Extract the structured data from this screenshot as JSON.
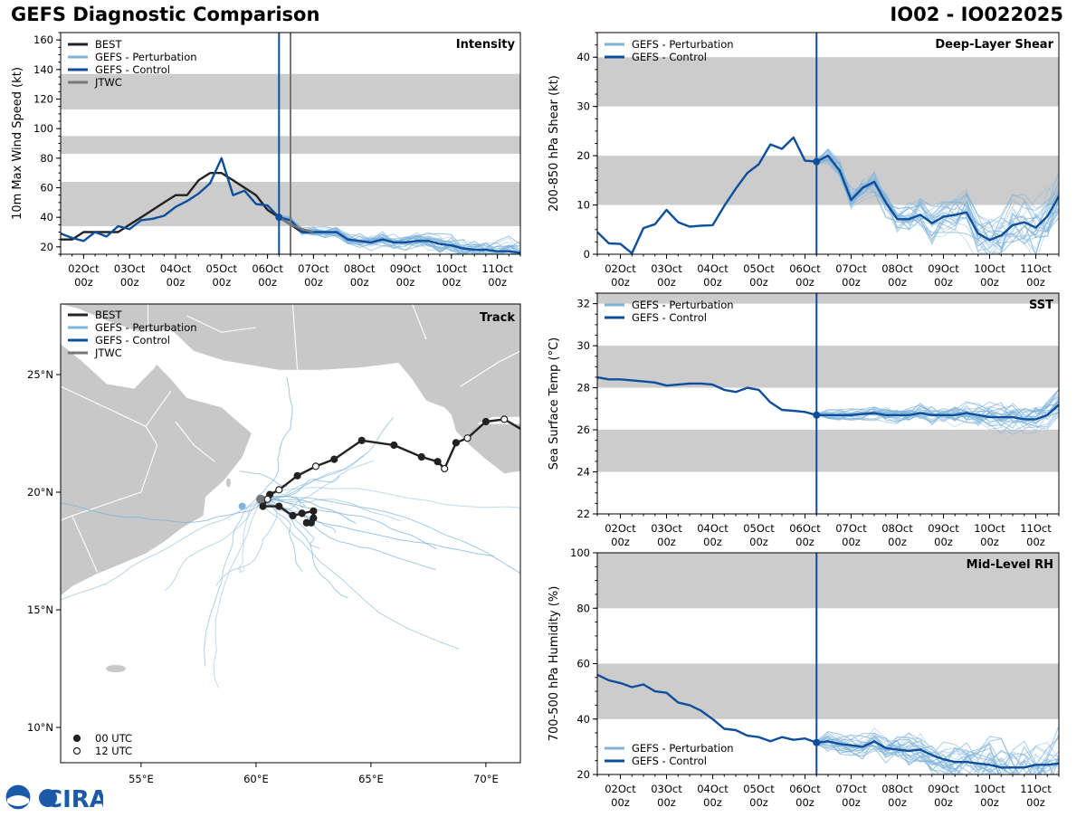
{
  "page": {
    "title": "GEFS Diagnostic Comparison",
    "storm": "IO02 - IO022025"
  },
  "colors": {
    "best": "#222222",
    "pert": "#7fb3d9",
    "ctrl": "#0d4f9c",
    "jtwc": "#777777",
    "band": "#cccccc",
    "land": "#c8c8c8",
    "border": "#ffffff"
  },
  "time_axis": {
    "ticks": [
      2,
      3,
      4,
      5,
      6,
      7,
      8,
      9,
      10,
      11
    ],
    "labels": [
      "02Oct",
      "03Oct",
      "04Oct",
      "05Oct",
      "06Oct",
      "07Oct",
      "08Oct",
      "09Oct",
      "10Oct",
      "11Oct"
    ],
    "sublabel": "00z",
    "range": [
      1.5,
      11.5
    ],
    "init_time": 6.25
  },
  "logo": {
    "text": "CIRA",
    "alt": "NOAA"
  },
  "chart_data": [
    {
      "id": "intensity",
      "type": "line",
      "title": "Intensity",
      "ylabel": "10m Max Wind Speed (kt)",
      "ylim": [
        15,
        165
      ],
      "yticks": [
        20,
        40,
        60,
        80,
        100,
        120,
        140,
        160
      ],
      "bands": [
        [
          34,
          64
        ],
        [
          83,
          95
        ],
        [
          113,
          137
        ]
      ],
      "jtwc_time": 6.5,
      "legend": [
        "BEST",
        "GEFS - Perturbation",
        "GEFS - Control",
        "JTWC"
      ],
      "series": [
        {
          "name": "BEST",
          "x": [
            1.5,
            1.75,
            2.0,
            2.25,
            2.5,
            2.75,
            3.0,
            3.25,
            3.5,
            3.75,
            4.0,
            4.25,
            4.5,
            4.75,
            5.0,
            5.25,
            5.5,
            5.75,
            6.0,
            6.25,
            6.5,
            6.75,
            7.0
          ],
          "y": [
            25,
            25,
            30,
            30,
            30,
            30,
            35,
            40,
            45,
            50,
            55,
            55,
            65,
            70,
            70,
            65,
            60,
            55,
            45,
            40,
            35,
            30,
            30
          ]
        },
        {
          "name": "GEFS - Control",
          "x": [
            1.5,
            1.75,
            2.0,
            2.25,
            2.5,
            2.75,
            3.0,
            3.25,
            3.5,
            3.75,
            4.0,
            4.25,
            4.5,
            4.75,
            5.0,
            5.25,
            5.5,
            5.75,
            6.0,
            6.25,
            6.5,
            6.75,
            7.0,
            7.25,
            7.5,
            7.75,
            8.0,
            8.25,
            8.5,
            8.75,
            9.0,
            9.25,
            9.5,
            9.75,
            10.0,
            10.25,
            10.5,
            10.75,
            11.0,
            11.25,
            11.5
          ],
          "y": [
            29,
            26,
            24,
            30,
            27,
            34,
            32,
            38,
            39,
            41,
            47,
            51,
            56,
            63,
            80,
            55,
            58,
            49,
            48,
            40,
            38,
            30,
            30,
            30,
            30,
            25,
            24,
            23,
            25,
            23,
            23,
            24,
            24,
            22,
            21,
            19,
            18,
            18,
            17,
            17,
            16
          ]
        },
        {
          "name": "JTWC",
          "x": [
            6.25,
            6.5,
            6.75,
            7.0
          ],
          "y": [
            40,
            35,
            32,
            30
          ]
        }
      ]
    },
    {
      "id": "shear",
      "type": "line",
      "title": "Deep-Layer Shear",
      "ylabel": "200-850 hPa Shear (kt)",
      "ylim": [
        0,
        45
      ],
      "yticks": [
        0,
        10,
        20,
        30,
        40
      ],
      "bands": [
        [
          10,
          20
        ],
        [
          30,
          40
        ]
      ],
      "legend": [
        "GEFS - Perturbation",
        "GEFS - Control"
      ],
      "series": [
        {
          "name": "GEFS - Control",
          "x": [
            1.5,
            1.75,
            2.0,
            2.25,
            2.5,
            2.75,
            3.0,
            3.25,
            3.5,
            3.75,
            4.0,
            4.25,
            4.5,
            4.75,
            5.0,
            5.25,
            5.5,
            5.75,
            6.0,
            6.25,
            6.5,
            6.75,
            7.0,
            7.25,
            7.5,
            7.75,
            8.0,
            8.25,
            8.5,
            8.75,
            9.0,
            9.25,
            9.5,
            9.75,
            10.0,
            10.25,
            10.5,
            10.75,
            11.0,
            11.25,
            11.5
          ],
          "y": [
            4.5,
            2.2,
            2.1,
            0.2,
            5.3,
            6.1,
            9,
            6.5,
            5.6,
            5.8,
            5.9,
            9.8,
            13.3,
            16.5,
            18.3,
            22.3,
            21.4,
            23.7,
            19,
            18.8,
            20,
            17,
            11,
            13.5,
            14.7,
            10.5,
            7.1,
            7.1,
            8,
            6.3,
            7.6,
            8,
            8.5,
            4.2,
            2.9,
            3.8,
            5.9,
            6.5,
            5.4,
            7.7,
            11.8
          ]
        }
      ]
    },
    {
      "id": "sst",
      "type": "line",
      "title": "SST",
      "ylabel": "Sea Surface Temp (°C)",
      "ylim": [
        22,
        32.5
      ],
      "yticks": [
        22,
        24,
        26,
        28,
        30,
        32
      ],
      "bands": [
        [
          24,
          26
        ],
        [
          28,
          30
        ],
        [
          32,
          34
        ]
      ],
      "legend": [
        "GEFS - Perturbation",
        "GEFS - Control"
      ],
      "series": [
        {
          "name": "GEFS - Control",
          "x": [
            1.5,
            1.75,
            2.0,
            2.25,
            2.5,
            2.75,
            3.0,
            3.25,
            3.5,
            3.75,
            4.0,
            4.25,
            4.5,
            4.75,
            5.0,
            5.25,
            5.5,
            5.75,
            6.0,
            6.25,
            6.5,
            6.75,
            7.0,
            7.25,
            7.5,
            7.75,
            8.0,
            8.25,
            8.5,
            8.75,
            9.0,
            9.25,
            9.5,
            9.75,
            10.0,
            10.25,
            10.5,
            10.75,
            11.0,
            11.25,
            11.5
          ],
          "y": [
            28.5,
            28.4,
            28.4,
            28.35,
            28.3,
            28.25,
            28.1,
            28.15,
            28.2,
            28.2,
            28.15,
            27.9,
            27.8,
            28.0,
            27.9,
            27.3,
            26.95,
            26.9,
            26.85,
            26.7,
            26.7,
            26.7,
            26.7,
            26.75,
            26.8,
            26.7,
            26.7,
            26.7,
            26.8,
            26.7,
            26.7,
            26.7,
            26.8,
            26.7,
            26.6,
            26.6,
            26.6,
            26.5,
            26.5,
            26.7,
            27.2
          ]
        }
      ]
    },
    {
      "id": "rh",
      "type": "line",
      "title": "Mid-Level RH",
      "ylabel": "700-500 hPa Humidity (%)",
      "ylim": [
        20,
        100
      ],
      "yticks": [
        20,
        40,
        60,
        80,
        100
      ],
      "bands": [
        [
          40,
          60
        ],
        [
          80,
          100
        ]
      ],
      "legend": [
        "GEFS - Perturbation",
        "GEFS - Control"
      ],
      "series": [
        {
          "name": "GEFS - Control",
          "x": [
            1.5,
            1.75,
            2.0,
            2.25,
            2.5,
            2.75,
            3.0,
            3.25,
            3.5,
            3.75,
            4.0,
            4.25,
            4.5,
            4.75,
            5.0,
            5.25,
            5.5,
            5.75,
            6.0,
            6.25,
            6.5,
            6.75,
            7.0,
            7.25,
            7.5,
            7.75,
            8.0,
            8.25,
            8.5,
            8.75,
            9.0,
            9.25,
            9.5,
            9.75,
            10.0,
            10.25,
            10.5,
            10.75,
            11.0,
            11.25,
            11.5
          ],
          "y": [
            56,
            54,
            53,
            51.5,
            52.5,
            50,
            49.5,
            46,
            45,
            43,
            40,
            36.5,
            36,
            34,
            33.5,
            32,
            33.5,
            32.5,
            33,
            31.5,
            32,
            31,
            30.5,
            30,
            32,
            29.5,
            29,
            28.5,
            29,
            27,
            25.5,
            24.5,
            24.5,
            24,
            23.5,
            22.5,
            22.5,
            22.5,
            23.5,
            23.5,
            24
          ]
        }
      ]
    },
    {
      "id": "track",
      "type": "scatter",
      "title": "Track",
      "lon_range": [
        51.5,
        71.5
      ],
      "lat_range": [
        8.5,
        28
      ],
      "lon_ticks": [
        55,
        60,
        65,
        70
      ],
      "lon_labels": [
        "55°E",
        "60°E",
        "65°E",
        "70°E"
      ],
      "lat_ticks": [
        10,
        15,
        20,
        25
      ],
      "lat_labels": [
        "10°N",
        "15°N",
        "20°N",
        "25°N"
      ],
      "legend": [
        "BEST",
        "GEFS - Perturbation",
        "GEFS - Control",
        "JTWC"
      ],
      "marker_legend": [
        "00 UTC",
        "12 UTC"
      ],
      "best_track": {
        "lon": [
          71.5,
          70.8,
          70.0,
          69.2,
          68.7,
          68.2,
          67.9,
          67.2,
          66.0,
          64.6,
          63.4,
          62.6,
          61.8,
          61.0,
          60.6,
          60.5,
          60.3,
          61.0,
          61.6,
          62.0,
          62.5,
          62.5,
          62.4,
          62.2
        ],
        "lat": [
          22.7,
          23.1,
          23.0,
          22.3,
          22.1,
          21.0,
          21.3,
          21.5,
          22.0,
          22.2,
          21.4,
          21.1,
          20.7,
          20.1,
          19.9,
          19.7,
          19.4,
          19.4,
          19.0,
          19.1,
          19.2,
          18.9,
          18.7,
          18.7
        ],
        "synoptic": [
          0,
          0,
          1,
          0,
          1,
          0,
          1,
          1,
          1,
          1,
          1,
          0,
          1,
          0,
          1,
          0,
          1,
          1,
          1,
          1,
          1,
          1,
          1,
          1
        ]
      },
      "control_point": {
        "lon": 59.4,
        "lat": 19.4
      },
      "jtwc_point": {
        "lon": 60.2,
        "lat": 19.7
      }
    }
  ]
}
